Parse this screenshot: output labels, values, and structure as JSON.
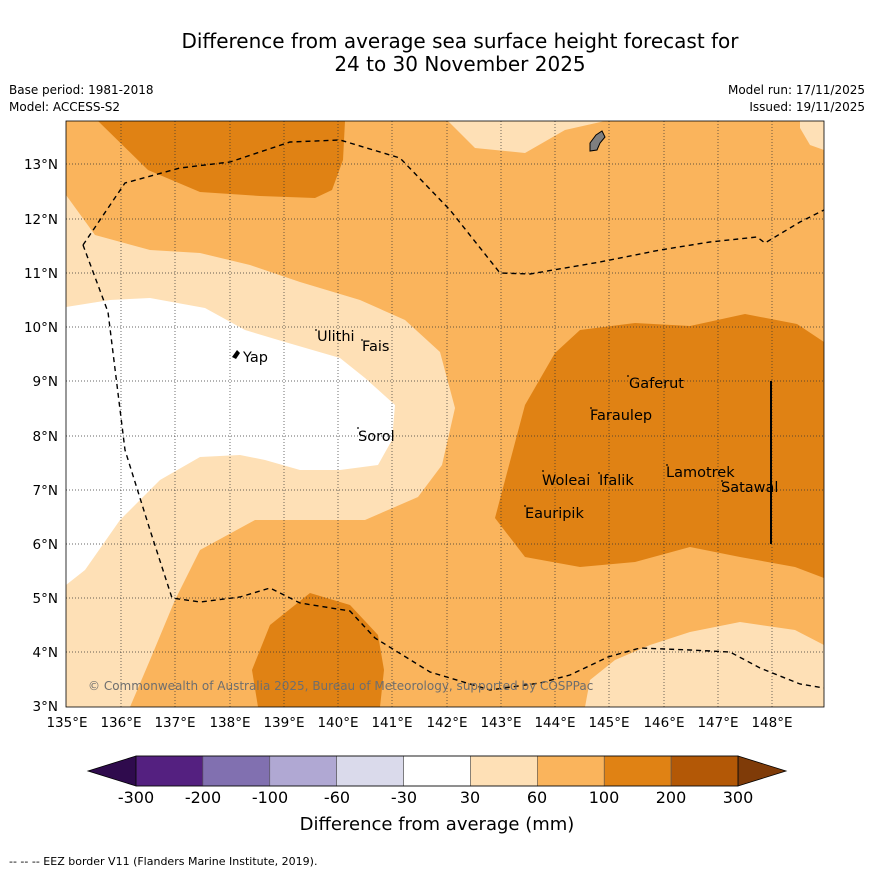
{
  "title": {
    "line1": "Difference from average sea surface height forecast for",
    "line2": "24 to 30 November 2025"
  },
  "meta": {
    "base_period": "Base period: 1981-2018",
    "model": "Model: ACCESS-S2",
    "model_run": "Model run: 17/11/2025",
    "issued": "Issued: 19/11/2025"
  },
  "map": {
    "lat_labels": [
      "13°N",
      "12°N",
      "11°N",
      "10°N",
      "9°N",
      "8°N",
      "7°N",
      "6°N",
      "5°N",
      "4°N",
      "3°N"
    ],
    "lon_labels": [
      "135°E",
      "136°E",
      "137°E",
      "138°E",
      "139°E",
      "140°E",
      "141°E",
      "142°E",
      "143°E",
      "144°E",
      "145°E",
      "146°E",
      "147°E",
      "148°E"
    ],
    "places": [
      "Yap",
      "Ulithi",
      "Fais",
      "Sorol",
      "Gaferut",
      "Faraulep",
      "Woleai",
      "Ifalik",
      "Eauripik",
      "Lamotrek",
      "Satawal"
    ],
    "copyright": "© Commonwealth of Australia 2025, Bureau of Meteorology, supported by COSPPac"
  },
  "colorbar": {
    "tick_labels": [
      "-300",
      "-200",
      "-100",
      "-60",
      "-30",
      "30",
      "60",
      "100",
      "200",
      "300"
    ],
    "label": "Difference from average (mm)",
    "colors": [
      "#2f0b4d",
      "#542080",
      "#8170b0",
      "#b0a8d3",
      "#dadaeb",
      "#ffffff",
      "#fee0b6",
      "#fab45c",
      "#e08214",
      "#b35806",
      "#7f3b08"
    ]
  },
  "footnote": "--  --  -- EEZ border V11 (Flanders Marine Institute, 2019)."
}
